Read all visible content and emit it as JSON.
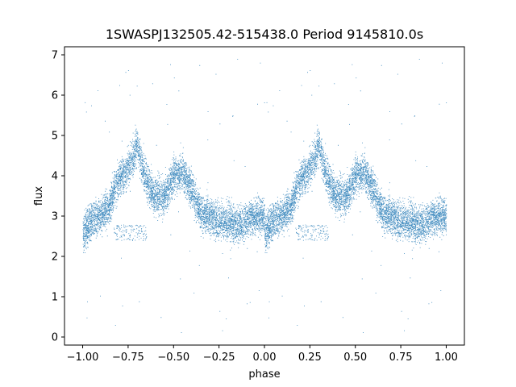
{
  "chart_data": {
    "type": "scatter",
    "title": "1SWASPJ132505.42-515438.0 Period 9145810.0s",
    "xlabel": "phase",
    "ylabel": "flux",
    "xlim": [
      -1.1,
      1.1
    ],
    "ylim": [
      -0.2,
      7.2
    ],
    "xticks": [
      -1.0,
      -0.75,
      -0.5,
      -0.25,
      0.0,
      0.25,
      0.5,
      0.75,
      1.0
    ],
    "xtick_labels": [
      "−1.00",
      "−0.75",
      "−0.50",
      "−0.25",
      "0.00",
      "0.25",
      "0.50",
      "0.75",
      "1.00"
    ],
    "yticks": [
      0,
      1,
      2,
      3,
      4,
      5,
      6,
      7
    ],
    "ytick_labels": [
      "0",
      "1",
      "2",
      "3",
      "4",
      "5",
      "6",
      "7"
    ],
    "grid": false,
    "marker_color": "#1f77b4",
    "trend": {
      "phase": [
        0.0,
        0.05,
        0.1,
        0.15,
        0.17,
        0.2,
        0.25,
        0.28,
        0.3,
        0.33,
        0.38,
        0.4,
        0.45,
        0.5,
        0.55,
        0.6,
        0.65,
        0.7,
        0.75,
        0.8,
        0.85,
        0.9,
        0.95,
        1.0
      ],
      "flux": [
        2.6,
        2.9,
        3.05,
        3.3,
        3.6,
        3.95,
        4.2,
        4.5,
        4.8,
        4.1,
        3.6,
        3.5,
        3.5,
        4.0,
        4.1,
        3.6,
        3.1,
        3.0,
        2.9,
        2.85,
        2.8,
        2.9,
        3.0,
        3.0
      ]
    },
    "secondary_clump": {
      "phase": [
        0.17,
        0.35
      ],
      "flux": [
        2.4,
        2.8
      ]
    },
    "point_count": 16000
  }
}
